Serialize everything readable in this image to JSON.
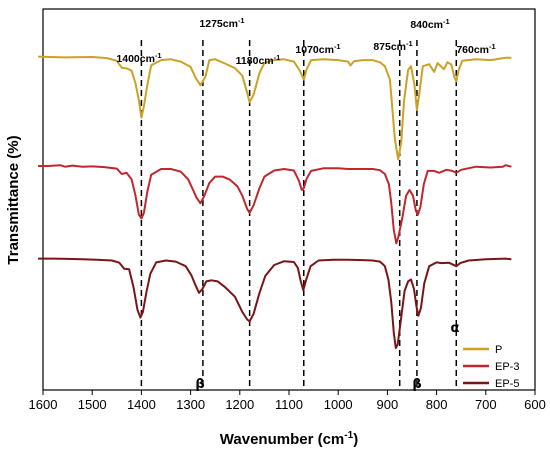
{
  "chart_data": {
    "type": "line",
    "xlabel": "Wavenumber (cm",
    "xlabel_sup": "-1",
    "xlabel_end": ")",
    "ylabel": "Transmittance (%)",
    "xlim": [
      1600,
      600
    ],
    "x_reversed": true,
    "xticks": [
      "1600",
      "1500",
      "1400",
      "1300",
      "1200",
      "1100",
      "1000",
      "900",
      "800",
      "700",
      "600"
    ],
    "y_ticks_shown": false,
    "grid": false,
    "legend_position": "bottom-right",
    "series": [
      {
        "name": "P",
        "color": "#c9a227",
        "points": [
          [
            1610,
            0.875
          ],
          [
            1560,
            0.873
          ],
          [
            1500,
            0.874
          ],
          [
            1470,
            0.871
          ],
          [
            1450,
            0.864
          ],
          [
            1440,
            0.846
          ],
          [
            1430,
            0.844
          ],
          [
            1420,
            0.838
          ],
          [
            1412,
            0.805
          ],
          [
            1405,
            0.76
          ],
          [
            1400,
            0.715
          ],
          [
            1395,
            0.745
          ],
          [
            1388,
            0.8
          ],
          [
            1380,
            0.852
          ],
          [
            1360,
            0.866
          ],
          [
            1340,
            0.868
          ],
          [
            1320,
            0.862
          ],
          [
            1300,
            0.848
          ],
          [
            1290,
            0.82
          ],
          [
            1280,
            0.8
          ],
          [
            1270,
            0.822
          ],
          [
            1262,
            0.866
          ],
          [
            1250,
            0.868
          ],
          [
            1230,
            0.857
          ],
          [
            1210,
            0.845
          ],
          [
            1195,
            0.825
          ],
          [
            1185,
            0.78
          ],
          [
            1180,
            0.755
          ],
          [
            1172,
            0.775
          ],
          [
            1160,
            0.832
          ],
          [
            1150,
            0.858
          ],
          [
            1130,
            0.866
          ],
          [
            1110,
            0.868
          ],
          [
            1090,
            0.862
          ],
          [
            1078,
            0.838
          ],
          [
            1070,
            0.815
          ],
          [
            1064,
            0.842
          ],
          [
            1055,
            0.866
          ],
          [
            1030,
            0.868
          ],
          [
            1000,
            0.866
          ],
          [
            980,
            0.862
          ],
          [
            975,
            0.852
          ],
          [
            968,
            0.863
          ],
          [
            950,
            0.866
          ],
          [
            930,
            0.866
          ],
          [
            915,
            0.86
          ],
          [
            905,
            0.85
          ],
          [
            895,
            0.815
          ],
          [
            890,
            0.74
          ],
          [
            885,
            0.66
          ],
          [
            878,
            0.605
          ],
          [
            872,
            0.65
          ],
          [
            866,
            0.76
          ],
          [
            858,
            0.84
          ],
          [
            852,
            0.85
          ],
          [
            845,
            0.8
          ],
          [
            840,
            0.735
          ],
          [
            835,
            0.78
          ],
          [
            828,
            0.85
          ],
          [
            815,
            0.855
          ],
          [
            805,
            0.835
          ],
          [
            798,
            0.858
          ],
          [
            785,
            0.842
          ],
          [
            778,
            0.86
          ],
          [
            770,
            0.854
          ],
          [
            764,
            0.822
          ],
          [
            760,
            0.81
          ],
          [
            755,
            0.84
          ],
          [
            748,
            0.864
          ],
          [
            720,
            0.868
          ],
          [
            690,
            0.866
          ],
          [
            660,
            0.872
          ],
          [
            648,
            0.872
          ]
        ]
      },
      {
        "name": "EP-3",
        "color": "#c0272d",
        "points": [
          [
            1610,
            0.588
          ],
          [
            1590,
            0.588
          ],
          [
            1565,
            0.59
          ],
          [
            1555,
            0.586
          ],
          [
            1540,
            0.589
          ],
          [
            1520,
            0.586
          ],
          [
            1500,
            0.587
          ],
          [
            1475,
            0.585
          ],
          [
            1450,
            0.581
          ],
          [
            1440,
            0.567
          ],
          [
            1430,
            0.57
          ],
          [
            1420,
            0.553
          ],
          [
            1412,
            0.51
          ],
          [
            1405,
            0.46
          ],
          [
            1400,
            0.45
          ],
          [
            1395,
            0.465
          ],
          [
            1388,
            0.52
          ],
          [
            1380,
            0.565
          ],
          [
            1360,
            0.58
          ],
          [
            1340,
            0.58
          ],
          [
            1320,
            0.573
          ],
          [
            1305,
            0.553
          ],
          [
            1295,
            0.525
          ],
          [
            1288,
            0.505
          ],
          [
            1280,
            0.49
          ],
          [
            1272,
            0.51
          ],
          [
            1262,
            0.543
          ],
          [
            1250,
            0.56
          ],
          [
            1235,
            0.56
          ],
          [
            1220,
            0.552
          ],
          [
            1205,
            0.535
          ],
          [
            1195,
            0.51
          ],
          [
            1185,
            0.475
          ],
          [
            1180,
            0.465
          ],
          [
            1172,
            0.485
          ],
          [
            1160,
            0.53
          ],
          [
            1150,
            0.56
          ],
          [
            1130,
            0.576
          ],
          [
            1110,
            0.58
          ],
          [
            1090,
            0.576
          ],
          [
            1080,
            0.55
          ],
          [
            1074,
            0.525
          ],
          [
            1070,
            0.53
          ],
          [
            1064,
            0.555
          ],
          [
            1055,
            0.575
          ],
          [
            1030,
            0.582
          ],
          [
            1000,
            0.582
          ],
          [
            980,
            0.58
          ],
          [
            950,
            0.58
          ],
          [
            930,
            0.58
          ],
          [
            915,
            0.577
          ],
          [
            905,
            0.567
          ],
          [
            897,
            0.54
          ],
          [
            892,
            0.49
          ],
          [
            887,
            0.42
          ],
          [
            882,
            0.385
          ],
          [
            878,
            0.4
          ],
          [
            870,
            0.45
          ],
          [
            862,
            0.51
          ],
          [
            855,
            0.525
          ],
          [
            848,
            0.51
          ],
          [
            842,
            0.47
          ],
          [
            838,
            0.46
          ],
          [
            833,
            0.48
          ],
          [
            826,
            0.54
          ],
          [
            818,
            0.575
          ],
          [
            805,
            0.575
          ],
          [
            795,
            0.57
          ],
          [
            780,
            0.578
          ],
          [
            768,
            0.575
          ],
          [
            760,
            0.57
          ],
          [
            750,
            0.578
          ],
          [
            720,
            0.586
          ],
          [
            690,
            0.584
          ],
          [
            665,
            0.586
          ],
          [
            660,
            0.59
          ],
          [
            648,
            0.586
          ]
        ]
      },
      {
        "name": "EP-5",
        "color": "#7a1517",
        "points": [
          [
            1610,
            0.345
          ],
          [
            1580,
            0.345
          ],
          [
            1550,
            0.344
          ],
          [
            1520,
            0.343
          ],
          [
            1490,
            0.342
          ],
          [
            1460,
            0.34
          ],
          [
            1445,
            0.334
          ],
          [
            1435,
            0.318
          ],
          [
            1425,
            0.317
          ],
          [
            1416,
            0.27
          ],
          [
            1408,
            0.21
          ],
          [
            1402,
            0.19
          ],
          [
            1397,
            0.205
          ],
          [
            1390,
            0.255
          ],
          [
            1382,
            0.305
          ],
          [
            1370,
            0.335
          ],
          [
            1350,
            0.34
          ],
          [
            1330,
            0.337
          ],
          [
            1310,
            0.325
          ],
          [
            1298,
            0.3
          ],
          [
            1290,
            0.275
          ],
          [
            1283,
            0.255
          ],
          [
            1276,
            0.265
          ],
          [
            1268,
            0.285
          ],
          [
            1258,
            0.288
          ],
          [
            1245,
            0.285
          ],
          [
            1230,
            0.27
          ],
          [
            1210,
            0.245
          ],
          [
            1195,
            0.205
          ],
          [
            1185,
            0.185
          ],
          [
            1180,
            0.18
          ],
          [
            1172,
            0.2
          ],
          [
            1160,
            0.255
          ],
          [
            1148,
            0.3
          ],
          [
            1130,
            0.328
          ],
          [
            1110,
            0.338
          ],
          [
            1090,
            0.336
          ],
          [
            1082,
            0.32
          ],
          [
            1076,
            0.285
          ],
          [
            1071,
            0.262
          ],
          [
            1065,
            0.29
          ],
          [
            1056,
            0.325
          ],
          [
            1040,
            0.34
          ],
          [
            1010,
            0.342
          ],
          [
            980,
            0.342
          ],
          [
            950,
            0.341
          ],
          [
            930,
            0.34
          ],
          [
            915,
            0.337
          ],
          [
            905,
            0.325
          ],
          [
            898,
            0.29
          ],
          [
            892,
            0.23
          ],
          [
            887,
            0.15
          ],
          [
            883,
            0.11
          ],
          [
            879,
            0.12
          ],
          [
            873,
            0.18
          ],
          [
            865,
            0.26
          ],
          [
            858,
            0.285
          ],
          [
            852,
            0.29
          ],
          [
            846,
            0.265
          ],
          [
            841,
            0.22
          ],
          [
            837,
            0.195
          ],
          [
            832,
            0.215
          ],
          [
            825,
            0.28
          ],
          [
            815,
            0.325
          ],
          [
            800,
            0.335
          ],
          [
            790,
            0.333
          ],
          [
            775,
            0.334
          ],
          [
            768,
            0.33
          ],
          [
            760,
            0.325
          ],
          [
            752,
            0.333
          ],
          [
            735,
            0.34
          ],
          [
            700,
            0.343
          ],
          [
            660,
            0.345
          ],
          [
            648,
            0.343
          ]
        ]
      }
    ],
    "annotations": [
      {
        "text": "1400cm",
        "sup": "-1",
        "x": 1400
      },
      {
        "text": "1275cm",
        "sup": "-1",
        "x": 1275
      },
      {
        "text": "1180cm",
        "sup": "-1",
        "x": 1180
      },
      {
        "text": "1070cm",
        "sup": "-1",
        "x": 1070
      },
      {
        "text": "875cm",
        "sup": "-1",
        "x": 875
      },
      {
        "text": "840cm",
        "sup": "-1",
        "x": 840
      },
      {
        "text": "760cm",
        "sup": "-1",
        "x": 760
      }
    ],
    "greek_labels": [
      {
        "text": "β",
        "x": 1283
      },
      {
        "text": "β",
        "x": 830
      },
      {
        "text": "α",
        "x": 760
      }
    ]
  }
}
